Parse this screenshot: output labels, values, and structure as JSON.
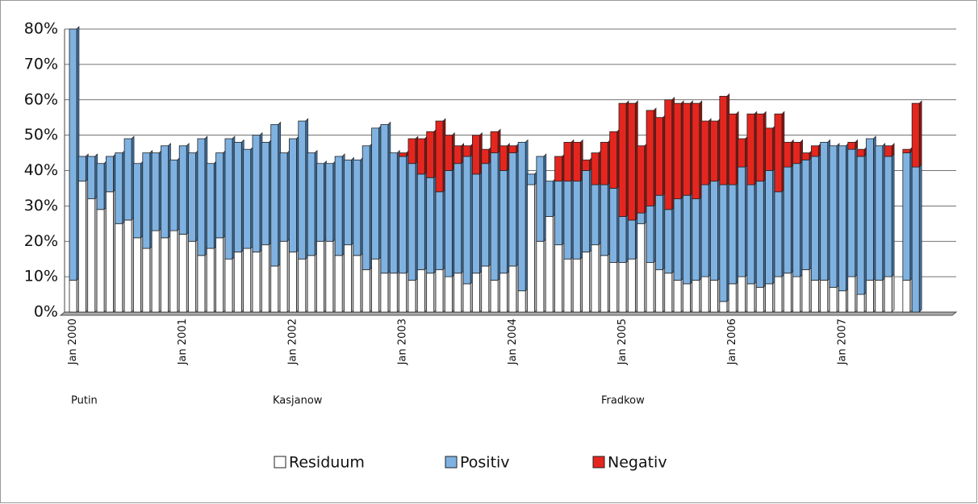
{
  "chart_data": {
    "type": "bar",
    "stacked": true,
    "categories": [
      "Jan 2000",
      null,
      null,
      null,
      null,
      null,
      null,
      null,
      null,
      null,
      null,
      null,
      "Jan 2001",
      null,
      null,
      null,
      null,
      null,
      null,
      null,
      null,
      null,
      null,
      null,
      "Jan 2002",
      null,
      null,
      null,
      null,
      null,
      null,
      null,
      null,
      null,
      null,
      null,
      "Jan 2003",
      null,
      null,
      null,
      null,
      null,
      null,
      null,
      null,
      null,
      null,
      null,
      "Jan 2004",
      null,
      null,
      null,
      null,
      null,
      null,
      null,
      null,
      null,
      null,
      null,
      "Jan 2005",
      null,
      null,
      null,
      null,
      null,
      null,
      null,
      null,
      null,
      null,
      null,
      "Jan 2006",
      null,
      null,
      null,
      null,
      null,
      null,
      null,
      null,
      null,
      null,
      null,
      "Jan 2007",
      null,
      null,
      null,
      null,
      null,
      null,
      null,
      null
    ],
    "series": [
      {
        "name": "Residuum",
        "color": "#ffffff",
        "values": [
          9,
          37,
          32,
          29,
          34,
          25,
          26,
          21,
          18,
          23,
          21,
          23,
          22,
          20,
          16,
          18,
          21,
          15,
          17,
          18,
          17,
          19,
          13,
          20,
          17,
          15,
          16,
          20,
          20,
          16,
          19,
          16,
          12,
          15,
          11,
          11,
          11,
          9,
          12,
          11,
          12,
          10,
          11,
          8,
          11,
          13,
          9,
          11,
          13,
          6,
          36,
          20,
          27,
          19,
          15,
          15,
          17,
          19,
          16,
          14,
          14,
          15,
          25,
          14,
          12,
          11,
          9,
          8,
          9,
          10,
          9,
          3,
          8,
          10,
          8,
          7,
          8,
          10,
          11,
          10,
          12,
          9,
          9,
          7,
          6,
          10,
          5,
          9,
          9,
          10,
          null,
          9,
          0
        ]
      },
      {
        "name": "Positiv",
        "color": "#7fb2e0",
        "values": [
          71,
          7,
          12,
          13,
          10,
          20,
          23,
          21,
          27,
          22,
          26,
          20,
          25,
          25,
          33,
          24,
          24,
          34,
          31,
          28,
          33,
          29,
          40,
          25,
          32,
          39,
          29,
          22,
          22,
          28,
          24,
          27,
          35,
          37,
          42,
          34,
          33,
          33,
          27,
          27,
          22,
          30,
          31,
          36,
          28,
          29,
          36,
          29,
          32,
          42,
          3,
          24,
          10,
          18,
          22,
          22,
          23,
          17,
          20,
          21,
          13,
          11,
          3,
          16,
          21,
          18,
          23,
          25,
          23,
          26,
          28,
          33,
          28,
          31,
          28,
          30,
          32,
          24,
          30,
          32,
          31,
          35,
          39,
          40,
          41,
          36,
          39,
          40,
          38,
          34,
          null,
          36,
          41
        ]
      },
      {
        "name": "Negativ",
        "color": "#e5261f",
        "values": [
          0,
          0,
          0,
          0,
          0,
          0,
          0,
          0,
          0,
          0,
          0,
          0,
          0,
          0,
          0,
          0,
          0,
          0,
          0,
          0,
          0,
          0,
          0,
          0,
          0,
          0,
          0,
          0,
          0,
          0,
          0,
          0,
          0,
          0,
          0,
          0,
          1,
          7,
          10,
          13,
          20,
          10,
          5,
          3,
          11,
          4,
          6,
          7,
          2,
          0,
          0,
          0,
          0,
          7,
          11,
          11,
          3,
          9,
          12,
          16,
          32,
          33,
          19,
          27,
          22,
          31,
          27,
          26,
          27,
          18,
          17,
          25,
          20,
          8,
          20,
          19,
          12,
          22,
          7,
          6,
          2,
          3,
          0,
          0,
          0,
          2,
          2,
          0,
          0,
          3,
          null,
          1,
          18
        ]
      }
    ],
    "ylim": [
      0,
      80
    ],
    "yticks": [
      {
        "value": 0,
        "label": "0%"
      },
      {
        "value": 10,
        "label": "10%"
      },
      {
        "value": 20,
        "label": "20%"
      },
      {
        "value": 30,
        "label": "30%"
      },
      {
        "value": 40,
        "label": "40%"
      },
      {
        "value": 50,
        "label": "50%"
      },
      {
        "value": 60,
        "label": "60%"
      },
      {
        "value": 70,
        "label": "70%"
      },
      {
        "value": 80,
        "label": "80%"
      }
    ],
    "grid": true,
    "annotations": [
      "Putin",
      "Kasjanow",
      "Fradkow"
    ]
  }
}
